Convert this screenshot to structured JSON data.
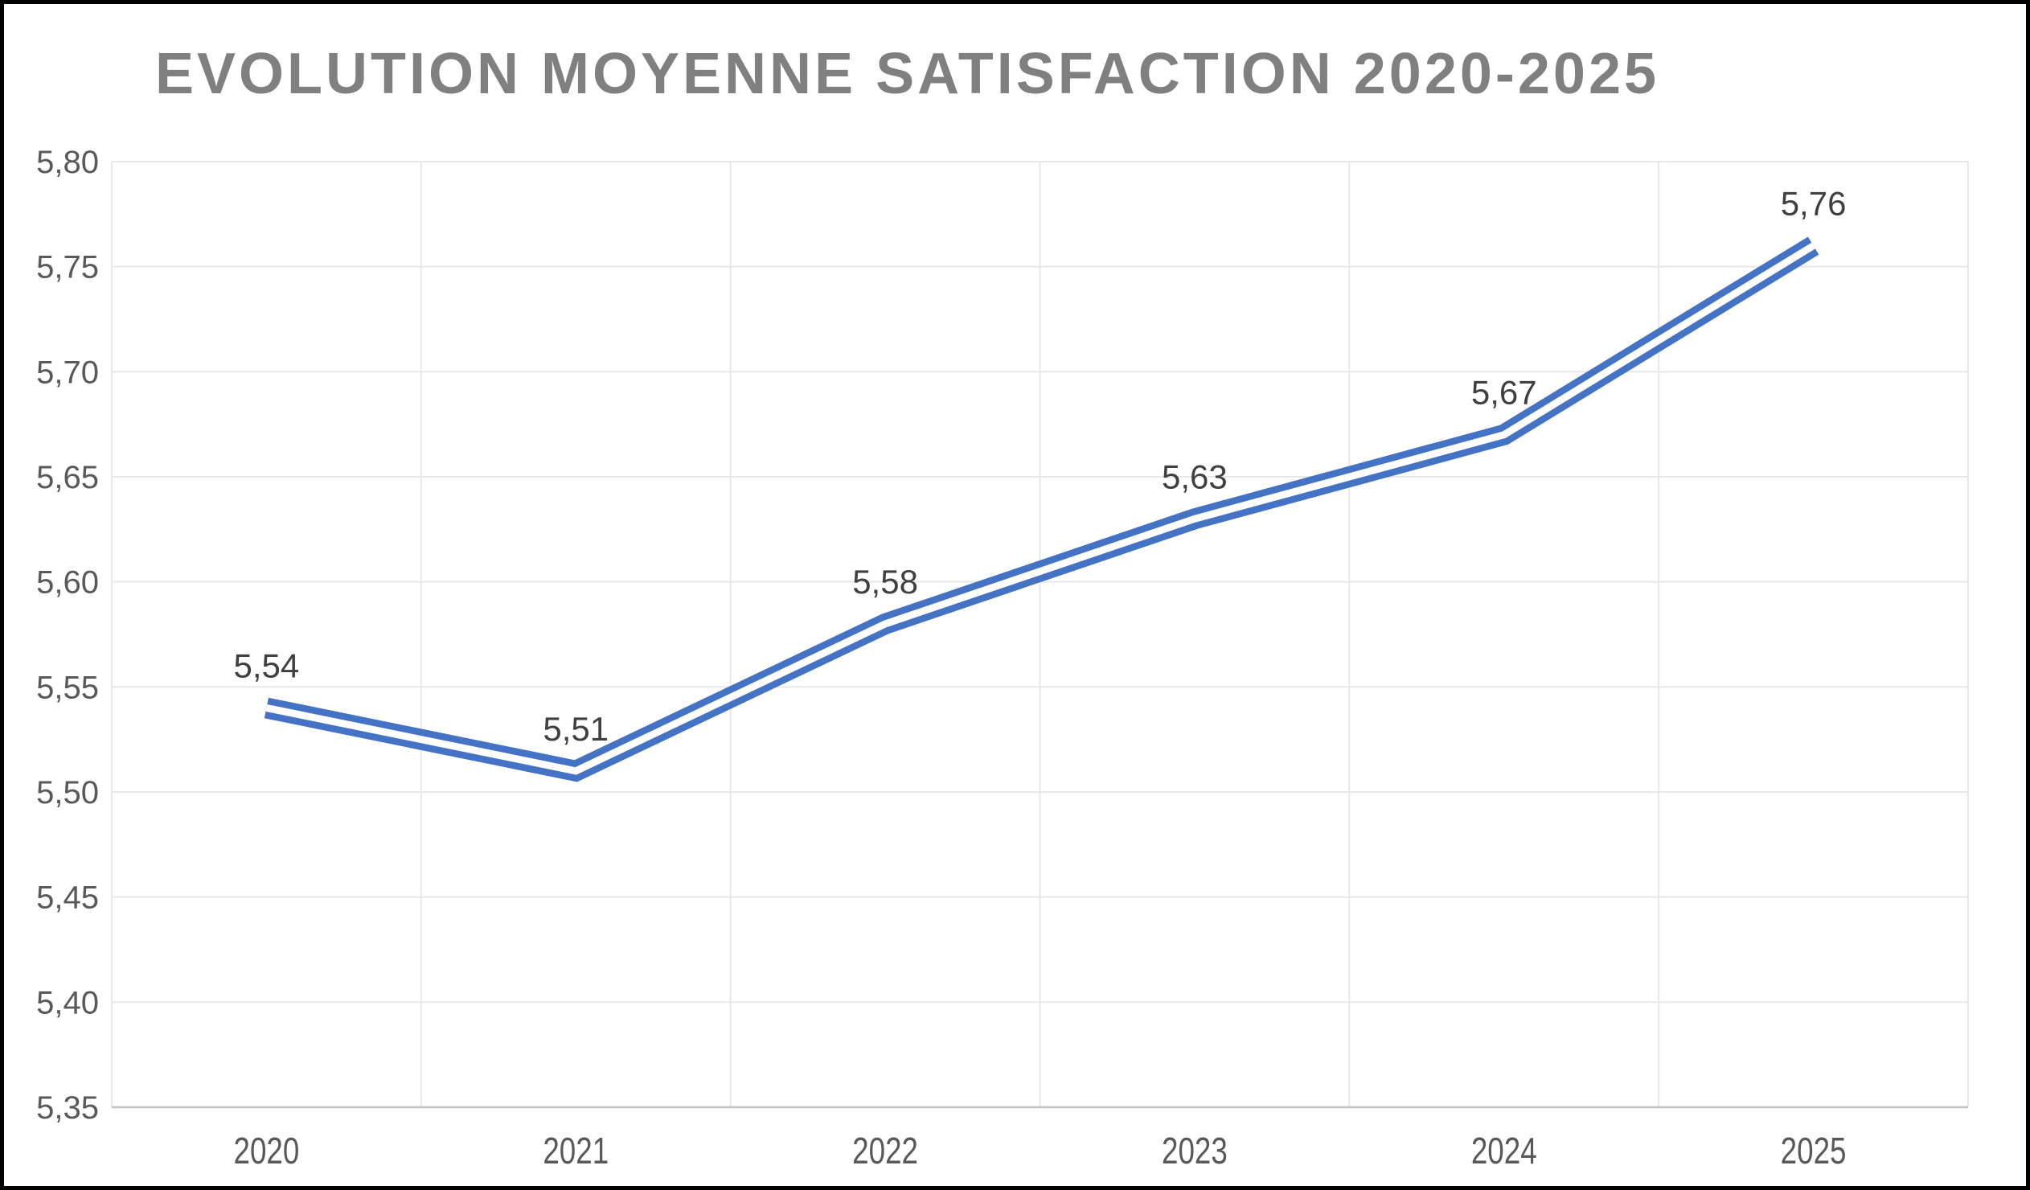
{
  "chart_data": {
    "type": "line",
    "title": "EVOLUTION MOYENNE SATISFACTION 2020-2025",
    "categories": [
      "2020",
      "2021",
      "2022",
      "2023",
      "2024",
      "2025"
    ],
    "values": [
      5.54,
      5.51,
      5.58,
      5.63,
      5.67,
      5.76
    ],
    "point_labels": [
      "5,54",
      "5,51",
      "5,58",
      "5,63",
      "5,67",
      "5,76"
    ],
    "ylim": [
      5.35,
      5.8
    ],
    "y_tick_step": 0.05,
    "y_tick_labels": [
      "5,80",
      "5,75",
      "5,70",
      "5,65",
      "5,60",
      "5,55",
      "5,50",
      "5,45",
      "5,40",
      "5,35"
    ],
    "xlabel": "",
    "ylabel": "",
    "grid": true,
    "legend": "none",
    "line_style": "double",
    "colors": {
      "line": "#4472C4",
      "line_inner": "#FFFFFF",
      "title": "#808080",
      "data_label": "#404040",
      "axis_label": "#595959",
      "gridline": "#E8E8E8",
      "axis_line": "#C3C3C3",
      "background": "#FFFFFF",
      "frame_border": "#000000"
    }
  }
}
